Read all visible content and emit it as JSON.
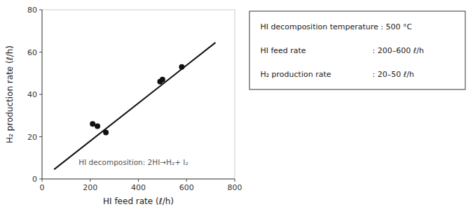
{
  "chart_data": {
    "type": "scatter",
    "series": [
      {
        "type": "line",
        "x": [
          50,
          720
        ],
        "values": [
          4.5,
          64.5
        ],
        "color": "#111111"
      },
      {
        "type": "scatter",
        "x": [
          210,
          230,
          265,
          490,
          500,
          580
        ],
        "values": [
          26,
          25,
          22,
          46,
          47,
          53
        ],
        "color": "#111111"
      }
    ],
    "xlim": [
      0,
      800
    ],
    "ylim": [
      0,
      80
    ],
    "xticks": [
      0,
      200,
      400,
      600,
      800
    ],
    "yticks": [
      0,
      20,
      40,
      60,
      80
    ],
    "xlabel": "HI feed rate (ℓ/h)",
    "ylabel": "H₂ production rate (ℓ/h)",
    "annotation": "HI decomposition: 2HI→H₂+ I₂",
    "info_box": [
      [
        "HI decomposition temperature : 500 °C"
      ],
      [
        "HI feed rate",
        ": 200–600 ℓ/h"
      ],
      [
        "H₂ production rate",
        ": 20–50 ℓ/h"
      ]
    ],
    "grid": false
  }
}
